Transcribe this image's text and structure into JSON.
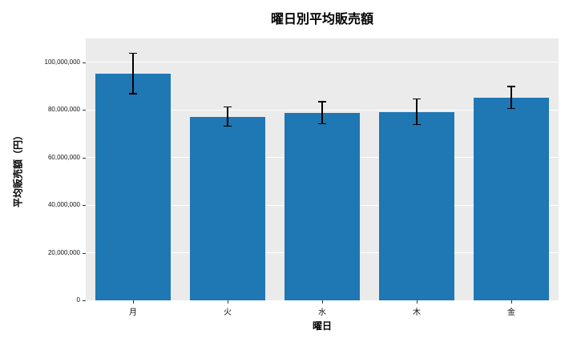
{
  "chart_data": {
    "type": "bar",
    "title": "曜日別平均販売額",
    "xlabel": "曜日",
    "ylabel": "平均販売額（円）",
    "categories": [
      "月",
      "火",
      "水",
      "木",
      "金"
    ],
    "values": [
      95300000,
      77200000,
      78800000,
      79200000,
      85200000
    ],
    "errors": [
      8500000,
      4000000,
      4600000,
      5400000,
      4700000
    ],
    "ylim": [
      0,
      110000000
    ],
    "yticks": [
      {
        "value": 0,
        "label": "0"
      },
      {
        "value": 20000000,
        "label": "20,000,000"
      },
      {
        "value": 40000000,
        "label": "40,000,000"
      },
      {
        "value": 60000000,
        "label": "60,000,000"
      },
      {
        "value": 80000000,
        "label": "80,000,000"
      },
      {
        "value": 100000000,
        "label": "100,000,000"
      }
    ],
    "bar_color": "#1f77b4",
    "plot_bg": "#ebebeb",
    "grid_color": "#ffffff",
    "error_color": "#000000",
    "grid": true,
    "legend_position": "none",
    "bar_width_fraction": 0.8
  }
}
